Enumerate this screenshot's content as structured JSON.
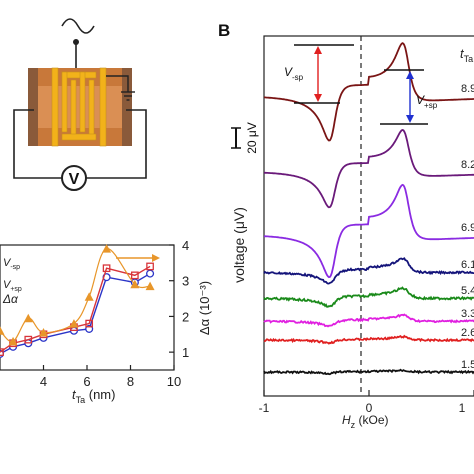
{
  "panel_label": "B",
  "device": {
    "voltmeter_symbol": "V",
    "colors": {
      "substrate": "#c8783a",
      "substrate_edge": "#8a5a3a",
      "electrode": "#f2b21a",
      "wire": "#222222"
    }
  },
  "chart_data": [
    {
      "type": "line",
      "xlabel_main": "t",
      "xlabel_sub": "Ta",
      "xlabel_unit": " (nm)",
      "x_ticks": [
        4,
        6,
        8,
        10
      ],
      "right_ylabel": "Δα (10⁻³)",
      "right_y_ticks": [
        1,
        2,
        3,
        4
      ],
      "xlim": [
        2,
        10
      ],
      "ylim_right": [
        0.5,
        4
      ],
      "legend": [
        {
          "label_main": "V",
          "label_sub": "-sp",
          "color": "#2b35c8"
        },
        {
          "label_main": "V",
          "label_sub": "+sp",
          "color": "#d8343a"
        },
        {
          "label_main": "Δα",
          "label_sub": "",
          "color": "#e8962a"
        }
      ],
      "series": [
        {
          "name": "V-sp",
          "color": "#2b35c8",
          "marker": "circle",
          "x": [
            2.0,
            2.6,
            3.3,
            4.0,
            5.4,
            6.1,
            6.9,
            8.2,
            8.9
          ],
          "y": [
            0.95,
            1.15,
            1.25,
            1.4,
            1.6,
            1.65,
            3.1,
            2.95,
            3.2
          ]
        },
        {
          "name": "V+sp",
          "color": "#d8343a",
          "marker": "square",
          "x": [
            2.0,
            2.6,
            3.3,
            4.0,
            5.4,
            6.1,
            6.9,
            8.2,
            8.9
          ],
          "y": [
            1.0,
            1.25,
            1.35,
            1.5,
            1.7,
            1.8,
            3.35,
            3.15,
            3.4
          ]
        },
        {
          "name": "Δα",
          "color": "#e8962a",
          "marker": "triangle",
          "x": [
            2.0,
            2.6,
            3.3,
            4.0,
            5.4,
            6.1,
            6.9,
            8.2,
            8.9
          ],
          "y": [
            1.6,
            1.3,
            1.95,
            1.55,
            1.8,
            2.55,
            3.9,
            2.9,
            2.85
          ]
        }
      ]
    },
    {
      "type": "line",
      "xlabel_main": "H",
      "xlabel_sub": "z",
      "xlabel_unit": " (kOe)",
      "ylabel": "voltage (μV)",
      "x_ticks": [
        -1,
        0,
        1
      ],
      "xlim": [
        -1,
        1
      ],
      "scale_bar_label": "20 μV",
      "scale_bar_uv": 20,
      "uv_per_px": 1.0,
      "legend_title_main": "t",
      "legend_title_sub": "Ta",
      "annotations": {
        "v_minus": "V",
        "v_minus_sub": "-sp",
        "v_plus": "V",
        "v_plus_sub": "+sp"
      },
      "series": [
        {
          "name": "8.9",
          "label": "8.9",
          "color": "#7a1515",
          "offset": 96,
          "amp": 1.0,
          "noise": 0.0
        },
        {
          "name": "8.2",
          "label": "8.2",
          "color": "#6a1a7a",
          "offset": 172,
          "amp": 0.8,
          "noise": 0.0
        },
        {
          "name": "6.9",
          "label": "6.9",
          "color": "#8a2be2",
          "offset": 235,
          "amp": 0.95,
          "noise": 0.0
        },
        {
          "name": "6.1",
          "label": "6.1",
          "color": "#14147a",
          "offset": 272,
          "amp": 0.25,
          "noise": 0.6
        },
        {
          "name": "5.4",
          "label": "5.4",
          "color": "#1a8a1a",
          "offset": 298,
          "amp": 0.18,
          "noise": 0.7
        },
        {
          "name": "3.3",
          "label": "3.3",
          "color": "#e020e0",
          "offset": 321,
          "amp": 0.11,
          "noise": 0.6
        },
        {
          "name": "2.6",
          "label": "2.6",
          "color": "#e02020",
          "offset": 340,
          "amp": 0.06,
          "noise": 0.6
        },
        {
          "name": "1.5",
          "label": "1.5",
          "color": "#111111",
          "offset": 372,
          "amp": 0.03,
          "noise": 0.6
        }
      ]
    }
  ]
}
